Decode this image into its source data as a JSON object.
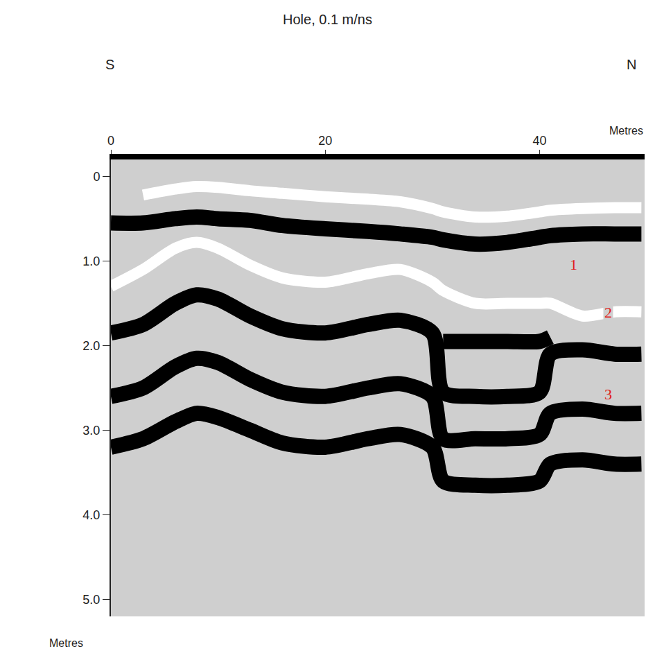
{
  "chart_data": {
    "type": "line",
    "title": "Hole, 0.1 m/ns",
    "x_label": "Metres",
    "y_label": "Metres",
    "left_label": "S",
    "right_label": "N",
    "x": [
      0,
      3,
      6,
      8,
      10,
      13,
      16,
      20,
      24,
      27,
      30,
      31,
      34,
      37,
      40,
      41,
      44,
      47,
      49.5
    ],
    "series": [
      {
        "color": "#ffffff",
        "values": [
          null,
          0.22,
          0.15,
          0.12,
          0.13,
          0.17,
          0.2,
          0.24,
          0.27,
          0.3,
          0.38,
          0.42,
          0.48,
          0.47,
          0.42,
          0.4,
          0.38,
          0.37,
          0.37
        ]
      },
      {
        "color": "#000000",
        "values": [
          0.55,
          0.55,
          0.5,
          0.48,
          0.5,
          0.52,
          0.58,
          0.62,
          0.65,
          0.68,
          0.72,
          0.75,
          0.8,
          0.78,
          0.72,
          0.7,
          0.68,
          0.68,
          0.68
        ]
      },
      {
        "color": "#ffffff",
        "values": [
          1.3,
          1.1,
          0.85,
          0.78,
          0.85,
          1.05,
          1.2,
          1.25,
          1.15,
          1.1,
          1.25,
          1.35,
          1.5,
          1.5,
          1.5,
          1.5,
          1.65,
          1.6,
          1.6
        ]
      },
      {
        "color": "#000000",
        "values": [
          null,
          null,
          null,
          null,
          null,
          null,
          null,
          null,
          null,
          null,
          null,
          1.95,
          1.95,
          1.95,
          1.95,
          1.9,
          null,
          null,
          null
        ]
      },
      {
        "color": "#000000",
        "values": [
          1.85,
          1.75,
          1.5,
          1.4,
          1.45,
          1.65,
          1.8,
          1.85,
          1.75,
          1.7,
          1.85,
          2.55,
          2.6,
          2.6,
          2.55,
          2.1,
          2.05,
          2.1,
          2.1
        ]
      },
      {
        "color": "#000000",
        "values": [
          2.6,
          2.5,
          2.25,
          2.15,
          2.2,
          2.4,
          2.55,
          2.6,
          2.5,
          2.45,
          2.6,
          3.1,
          3.1,
          3.1,
          3.05,
          2.8,
          2.75,
          2.8,
          2.8
        ]
      },
      {
        "color": "#000000",
        "values": [
          3.2,
          3.1,
          2.9,
          2.8,
          2.85,
          3.0,
          3.15,
          3.2,
          3.1,
          3.05,
          3.2,
          3.6,
          3.65,
          3.65,
          3.6,
          3.4,
          3.35,
          3.4,
          3.4
        ]
      }
    ],
    "annotations": [
      {
        "text": "1",
        "x": 43.2,
        "y": 1.04,
        "color": "#e0201b"
      },
      {
        "text": "2",
        "x": 46.4,
        "y": 1.61,
        "color": "#e0201b"
      },
      {
        "text": "3",
        "x": 46.4,
        "y": 2.57,
        "color": "#e0201b"
      }
    ],
    "xlim": [
      0,
      49.8
    ],
    "xticks": [
      0,
      20,
      40
    ],
    "ylim": [
      -0.2,
      5.2
    ],
    "yticks": [
      0,
      {
        "value": 1,
        "label": "1.0"
      },
      {
        "value": 2,
        "label": "2.0"
      },
      {
        "value": 3,
        "label": "3.0"
      },
      {
        "value": 4,
        "label": "4.0"
      },
      {
        "value": 5,
        "label": "5.0"
      }
    ],
    "grid": false
  }
}
